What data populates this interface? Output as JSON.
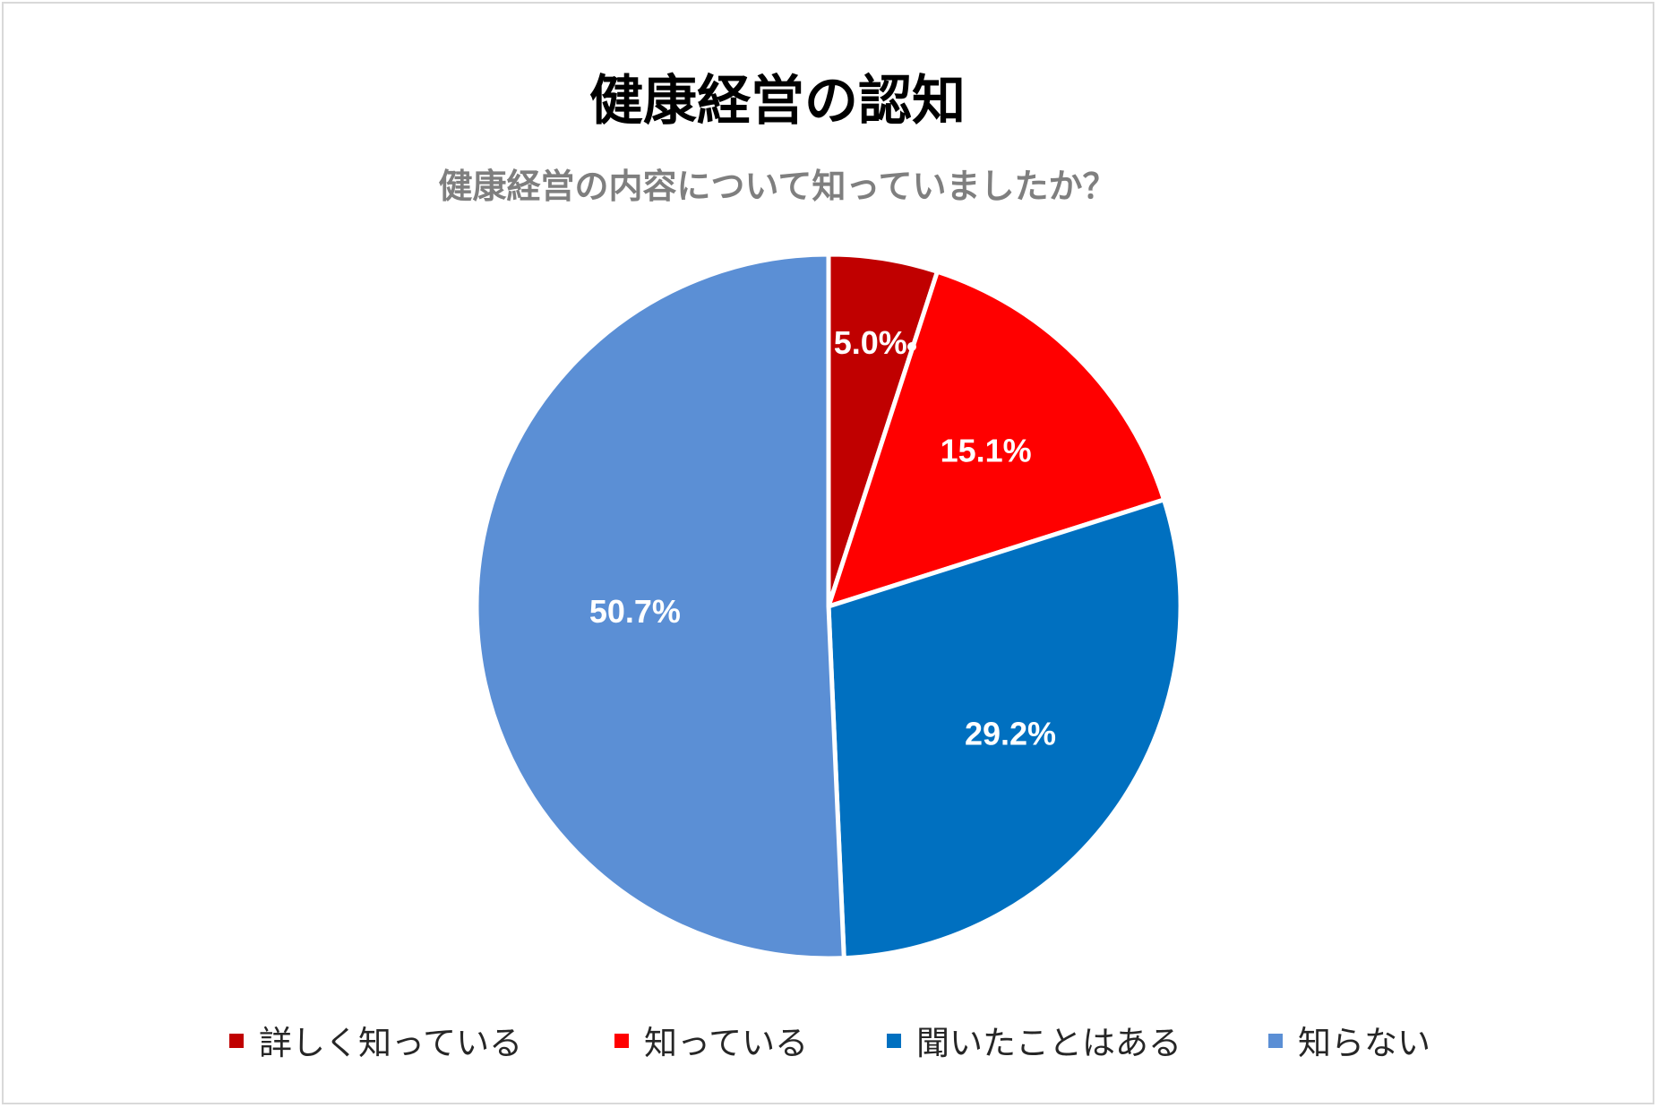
{
  "chart_data": {
    "type": "pie",
    "title": "健康経営の認知",
    "subtitle": "健康経営の内容について知っていましたか？",
    "categories": [
      "詳しく知っている",
      "知っている",
      "聞いたことはある",
      "知らない"
    ],
    "values": [
      5.0,
      15.1,
      29.2,
      50.7
    ],
    "labels": [
      "5.0%",
      "15.1%",
      "29.2%",
      "50.7%"
    ],
    "colors": [
      "#c00000",
      "#ff0000",
      "#0070c0",
      "#5b8fd5"
    ],
    "unit": "%",
    "legend_position": "bottom",
    "start_angle": "12 o'clock",
    "direction": "clockwise"
  }
}
